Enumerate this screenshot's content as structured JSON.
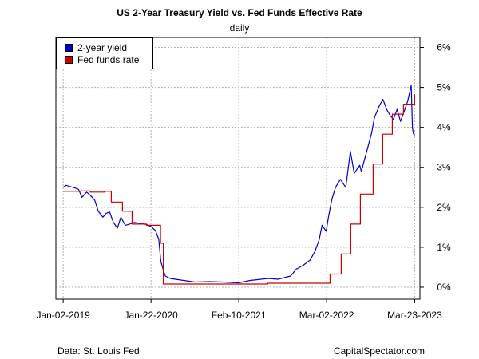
{
  "chart_data": {
    "type": "line",
    "title": "US 2-Year Treasury Yield vs. Fed Funds Effective Rate",
    "subtitle": "daily",
    "x_tick_labels": [
      "Jan-02-2019",
      "Jan-22-2020",
      "Feb-10-2021",
      "Mar-02-2022",
      "Mar-23-2023"
    ],
    "y_tick_labels": [
      "0%",
      "1%",
      "2%",
      "3%",
      "4%",
      "5%",
      "6%"
    ],
    "ylim": [
      -0.3,
      6.25
    ],
    "xlim": [
      "2018-12-01",
      "2023-04-15"
    ],
    "y_axis_side": "right",
    "grid": true,
    "legend_position": "top-left",
    "series": [
      {
        "name": "2-year yield",
        "color": "#0000cc",
        "points": [
          [
            "2019-01-02",
            2.5
          ],
          [
            "2019-01-15",
            2.55
          ],
          [
            "2019-02-01",
            2.52
          ],
          [
            "2019-02-20",
            2.49
          ],
          [
            "2019-03-10",
            2.45
          ],
          [
            "2019-03-25",
            2.25
          ],
          [
            "2019-04-15",
            2.38
          ],
          [
            "2019-05-01",
            2.3
          ],
          [
            "2019-05-20",
            2.18
          ],
          [
            "2019-06-05",
            1.9
          ],
          [
            "2019-06-25",
            1.75
          ],
          [
            "2019-07-10",
            1.85
          ],
          [
            "2019-07-25",
            1.88
          ],
          [
            "2019-08-10",
            1.62
          ],
          [
            "2019-08-28",
            1.48
          ],
          [
            "2019-09-12",
            1.75
          ],
          [
            "2019-10-01",
            1.55
          ],
          [
            "2019-10-20",
            1.58
          ],
          [
            "2019-11-10",
            1.62
          ],
          [
            "2019-12-01",
            1.6
          ],
          [
            "2020-01-02",
            1.57
          ],
          [
            "2020-01-22",
            1.52
          ],
          [
            "2020-02-10",
            1.42
          ],
          [
            "2020-02-25",
            1.2
          ],
          [
            "2020-03-05",
            0.65
          ],
          [
            "2020-03-15",
            0.45
          ],
          [
            "2020-03-25",
            0.28
          ],
          [
            "2020-04-15",
            0.22
          ],
          [
            "2020-06-01",
            0.18
          ],
          [
            "2020-08-01",
            0.13
          ],
          [
            "2020-10-01",
            0.14
          ],
          [
            "2020-12-01",
            0.13
          ],
          [
            "2021-02-10",
            0.11
          ],
          [
            "2021-04-01",
            0.17
          ],
          [
            "2021-06-20",
            0.22
          ],
          [
            "2021-08-01",
            0.2
          ],
          [
            "2021-09-25",
            0.28
          ],
          [
            "2021-10-20",
            0.45
          ],
          [
            "2021-11-20",
            0.55
          ],
          [
            "2021-12-20",
            0.68
          ],
          [
            "2022-01-10",
            0.9
          ],
          [
            "2022-01-28",
            1.18
          ],
          [
            "2022-02-10",
            1.55
          ],
          [
            "2022-02-28",
            1.4
          ],
          [
            "2022-03-10",
            1.75
          ],
          [
            "2022-03-25",
            2.2
          ],
          [
            "2022-04-10",
            2.5
          ],
          [
            "2022-05-01",
            2.7
          ],
          [
            "2022-05-25",
            2.5
          ],
          [
            "2022-06-14",
            3.4
          ],
          [
            "2022-07-01",
            2.85
          ],
          [
            "2022-07-25",
            3.05
          ],
          [
            "2022-08-01",
            2.9
          ],
          [
            "2022-08-25",
            3.4
          ],
          [
            "2022-09-15",
            3.85
          ],
          [
            "2022-09-28",
            4.25
          ],
          [
            "2022-10-20",
            4.55
          ],
          [
            "2022-11-04",
            4.7
          ],
          [
            "2022-11-20",
            4.45
          ],
          [
            "2022-12-05",
            4.3
          ],
          [
            "2022-12-20",
            4.2
          ],
          [
            "2023-01-05",
            4.45
          ],
          [
            "2023-01-20",
            4.15
          ],
          [
            "2023-02-05",
            4.4
          ],
          [
            "2023-02-20",
            4.65
          ],
          [
            "2023-03-02",
            4.9
          ],
          [
            "2023-03-08",
            5.05
          ],
          [
            "2023-03-13",
            4.0
          ],
          [
            "2023-03-17",
            3.85
          ],
          [
            "2023-03-23",
            3.8
          ]
        ]
      },
      {
        "name": "Fed funds rate",
        "color": "#cc0000",
        "points": [
          [
            "2019-01-02",
            2.4
          ],
          [
            "2019-03-20",
            2.41
          ],
          [
            "2019-05-01",
            2.38
          ],
          [
            "2019-06-15",
            2.38
          ],
          [
            "2019-07-01",
            2.4
          ],
          [
            "2019-08-01",
            2.13
          ],
          [
            "2019-09-01",
            2.13
          ],
          [
            "2019-09-19",
            1.9
          ],
          [
            "2019-10-31",
            1.58
          ],
          [
            "2020-01-02",
            1.55
          ],
          [
            "2020-03-04",
            1.1
          ],
          [
            "2020-03-16",
            0.08
          ],
          [
            "2020-06-01",
            0.08
          ],
          [
            "2021-06-17",
            0.1
          ],
          [
            "2022-03-17",
            0.33
          ],
          [
            "2022-05-05",
            0.83
          ],
          [
            "2022-06-16",
            1.58
          ],
          [
            "2022-07-28",
            2.33
          ],
          [
            "2022-09-22",
            3.08
          ],
          [
            "2022-11-03",
            3.83
          ],
          [
            "2022-12-15",
            4.33
          ],
          [
            "2023-02-02",
            4.58
          ],
          [
            "2023-03-23",
            4.83
          ]
        ]
      }
    ]
  },
  "footer": {
    "source": "Data: St. Louis Fed",
    "site": "CapitalSpectator.com"
  }
}
